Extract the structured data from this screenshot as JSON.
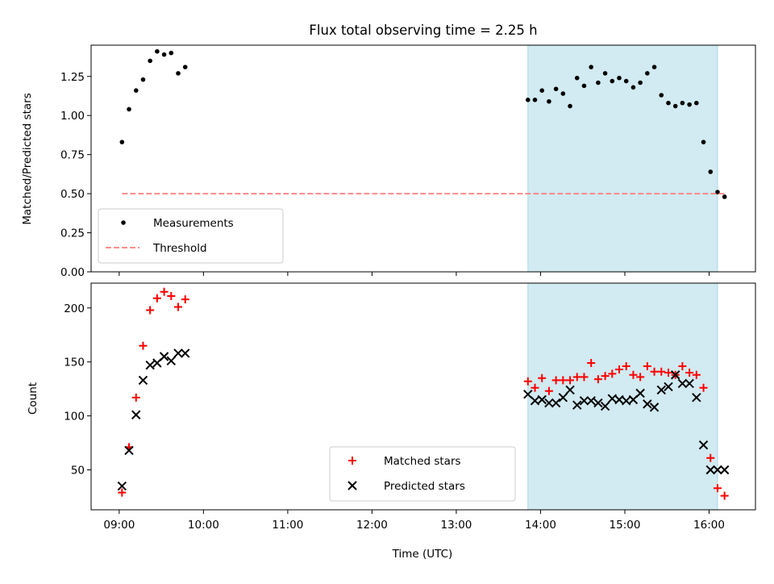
{
  "chart_data": {
    "type": "scatter",
    "title": "Flux total observing time = 2.25 h",
    "xlabel": "Time (UTC)",
    "x_ticks": [
      "09:00",
      "10:00",
      "11:00",
      "12:00",
      "13:00",
      "14:00",
      "15:00",
      "16:00"
    ],
    "shaded_interval": [
      "13:51",
      "16:06"
    ],
    "shade_color": "#add8e6",
    "panels": [
      {
        "ylabel": "Matched/Predicted stars",
        "ylim": [
          0,
          1.45
        ],
        "y_ticks": [
          "0.00",
          "0.25",
          "0.50",
          "0.75",
          "1.00",
          "1.25"
        ],
        "legend_position": "lower left",
        "series": [
          {
            "name": "Measurements",
            "marker": "dot",
            "color": "#000000",
            "x": [
              "09:02",
              "09:07",
              "09:12",
              "09:17",
              "09:22",
              "09:27",
              "09:32",
              "09:37",
              "09:42",
              "09:47",
              "13:51",
              "13:56",
              "14:01",
              "14:06",
              "14:11",
              "14:16",
              "14:21",
              "14:26",
              "14:31",
              "14:36",
              "14:41",
              "14:46",
              "14:51",
              "14:56",
              "15:01",
              "15:06",
              "15:11",
              "15:16",
              "15:21",
              "15:26",
              "15:31",
              "15:36",
              "15:41",
              "15:46",
              "15:51",
              "15:56",
              "16:01",
              "16:06",
              "16:11"
            ],
            "y": [
              0.83,
              1.04,
              1.16,
              1.23,
              1.35,
              1.41,
              1.39,
              1.4,
              1.27,
              1.31,
              1.1,
              1.1,
              1.16,
              1.09,
              1.17,
              1.14,
              1.06,
              1.24,
              1.19,
              1.31,
              1.21,
              1.27,
              1.22,
              1.24,
              1.22,
              1.18,
              1.21,
              1.27,
              1.31,
              1.13,
              1.08,
              1.06,
              1.08,
              1.07,
              1.08,
              0.83,
              0.64,
              0.51,
              0.48
            ]
          },
          {
            "name": "Threshold",
            "type": "line",
            "style": "dashed",
            "color": "#ff7f7f",
            "x": [
              "09:02",
              "16:11"
            ],
            "y": [
              0.5,
              0.5
            ]
          }
        ]
      },
      {
        "ylabel": "Count",
        "ylim": [
          13,
          223
        ],
        "y_ticks": [
          "50",
          "100",
          "150",
          "200"
        ],
        "legend_position": "lower center",
        "series": [
          {
            "name": "Matched stars",
            "marker": "plus",
            "color": "#ff0000",
            "x": [
              "09:02",
              "09:07",
              "09:12",
              "09:17",
              "09:22",
              "09:27",
              "09:32",
              "09:37",
              "09:42",
              "09:47",
              "13:51",
              "13:56",
              "14:01",
              "14:06",
              "14:11",
              "14:16",
              "14:21",
              "14:26",
              "14:31",
              "14:36",
              "14:41",
              "14:46",
              "14:51",
              "14:56",
              "15:01",
              "15:06",
              "15:11",
              "15:16",
              "15:21",
              "15:26",
              "15:31",
              "15:36",
              "15:41",
              "15:46",
              "15:51",
              "15:56",
              "16:01",
              "16:06",
              "16:11"
            ],
            "y": [
              29,
              71,
              117,
              165,
              198,
              209,
              215,
              211,
              201,
              208,
              132,
              126,
              135,
              123,
              133,
              133,
              133,
              136,
              136,
              149,
              134,
              137,
              139,
              143,
              146,
              138,
              136,
              146,
              141,
              141,
              140,
              138,
              146,
              140,
              138,
              126,
              61,
              33,
              26
            ]
          },
          {
            "name": "Predicted stars",
            "marker": "x",
            "color": "#000000",
            "x": [
              "09:02",
              "09:07",
              "09:12",
              "09:17",
              "09:22",
              "09:27",
              "09:32",
              "09:37",
              "09:42",
              "09:47",
              "13:51",
              "13:56",
              "14:01",
              "14:06",
              "14:11",
              "14:16",
              "14:21",
              "14:26",
              "14:31",
              "14:36",
              "14:41",
              "14:46",
              "14:51",
              "14:56",
              "15:01",
              "15:06",
              "15:11",
              "15:16",
              "15:21",
              "15:26",
              "15:31",
              "15:36",
              "15:41",
              "15:46",
              "15:51",
              "15:56",
              "16:01",
              "16:06",
              "16:11"
            ],
            "y": [
              35,
              68,
              101,
              133,
              147,
              149,
              155,
              151,
              158,
              158,
              120,
              114,
              115,
              112,
              112,
              117,
              124,
              110,
              114,
              114,
              112,
              109,
              116,
              115,
              114,
              115,
              121,
              111,
              108,
              124,
              127,
              138,
              130,
              130,
              117,
              73,
              50,
              50,
              50
            ]
          }
        ]
      }
    ]
  }
}
